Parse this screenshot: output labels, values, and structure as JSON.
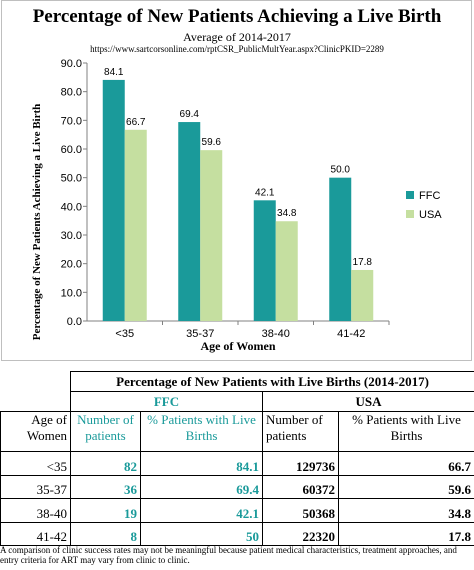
{
  "chart_data": {
    "type": "bar",
    "title": "Percentage of New Patients Achieving a Live Birth",
    "subtitle": "Average of 2014-2017",
    "source": "https://www.sartcorsonline.com/rptCSR_PublicMultYear.aspx?ClinicPKID=2289",
    "xlabel": "Age of Women",
    "ylabel": "Percentage of New Patients Achieving a Live Birth",
    "ylim": [
      0,
      90
    ],
    "yticks": [
      "0.0",
      "10.0",
      "20.0",
      "30.0",
      "40.0",
      "50.0",
      "60.0",
      "70.0",
      "80.0",
      "90.0"
    ],
    "categories": [
      "<35",
      "35-37",
      "38-40",
      "41-42"
    ],
    "series": [
      {
        "name": "FFC",
        "values": [
          84.1,
          69.4,
          42.1,
          50.0
        ],
        "labels": [
          "84.1",
          "69.4",
          "42.1",
          "50.0"
        ],
        "color": "#1a9a9a"
      },
      {
        "name": "USA",
        "values": [
          66.7,
          59.6,
          34.8,
          17.8
        ],
        "labels": [
          "66.7",
          "59.6",
          "34.8",
          "17.8"
        ],
        "color": "#c5dfa0"
      }
    ],
    "grid": false,
    "legend": "right"
  },
  "table": {
    "title": "Percentage of New Patients with Live Births (2014-2017)",
    "group_ffc": "FFC",
    "group_usa": "USA",
    "col_age": "Age of Women",
    "col_ffc_num": "Number of patients",
    "col_ffc_pct": "% Patients with Live Births",
    "col_usa_num": "Number of patients",
    "col_usa_pct": "% Patients with Live Births",
    "rows": [
      {
        "age": "<35",
        "ffc_num": "82",
        "ffc_pct": "84.1",
        "usa_num": "129736",
        "usa_pct": "66.7"
      },
      {
        "age": "35-37",
        "ffc_num": "36",
        "ffc_pct": "69.4",
        "usa_num": "60372",
        "usa_pct": "59.6"
      },
      {
        "age": "38-40",
        "ffc_num": "19",
        "ffc_pct": "42.1",
        "usa_num": "50368",
        "usa_pct": "34.8"
      },
      {
        "age": "41-42",
        "ffc_num": "8",
        "ffc_pct": "50",
        "usa_num": "22320",
        "usa_pct": "17.8"
      }
    ]
  },
  "note": "A comparison of clinic success rates may not be meaningful because patient medical characteristics, treatment approaches, and entry criteria for ART may vary from clinic to clinic."
}
